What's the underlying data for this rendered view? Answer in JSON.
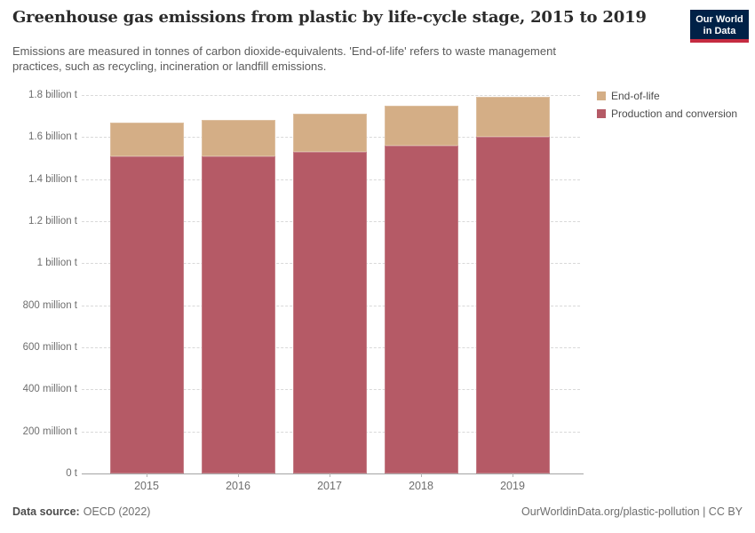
{
  "header": {
    "title": "Greenhouse gas emissions from plastic by life-cycle stage, 2015 to 2019",
    "subtitle_line1": "Emissions are measured in tonnes of carbon dioxide-equivalents. 'End-of-life' refers to waste management",
    "subtitle_line2": "practices, such as recycling, incineration or landfill emissions.",
    "logo": {
      "line1": "Our World",
      "line2": "in Data",
      "bg_color": "#002147",
      "stripe_color": "#C52B41"
    }
  },
  "legend": [
    {
      "label": "End-of-life",
      "color": "#D4AE86"
    },
    {
      "label": "Production and conversion",
      "color": "#B55A66"
    }
  ],
  "chart_data": {
    "type": "bar",
    "stacked": true,
    "title": "Greenhouse gas emissions from plastic by life-cycle stage, 2015 to 2019",
    "subtitle": "Emissions are measured in tonnes of carbon dioxide-equivalents. 'End-of-life' refers to waste management practices, such as recycling, incineration or landfill emissions.",
    "unit": "tonnes of carbon dioxide-equivalents",
    "categories": [
      "2015",
      "2016",
      "2017",
      "2018",
      "2019"
    ],
    "series": [
      {
        "name": "Production and conversion",
        "key": "production-and-conversion",
        "color": "#B55A66",
        "values_billion_t": [
          1.51,
          1.51,
          1.53,
          1.56,
          1.6
        ]
      },
      {
        "name": "End-of-life",
        "key": "end-of-life",
        "color": "#D4AE86",
        "values_billion_t": [
          0.16,
          0.17,
          0.18,
          0.19,
          0.19
        ]
      }
    ],
    "totals_billion_t": [
      1.67,
      1.68,
      1.71,
      1.75,
      1.79
    ],
    "ylim": [
      0,
      1.8
    ],
    "yticks": [
      {
        "value": 1.8,
        "label": "1.8 billion t"
      },
      {
        "value": 1.6,
        "label": "1.6 billion t"
      },
      {
        "value": 1.4,
        "label": "1.4 billion t"
      },
      {
        "value": 1.2,
        "label": "1.2 billion t"
      },
      {
        "value": 1.0,
        "label": "1 billion t"
      },
      {
        "value": 0.8,
        "label": "800 million t"
      },
      {
        "value": 0.6,
        "label": "600 million t"
      },
      {
        "value": 0.4,
        "label": "400 million t"
      },
      {
        "value": 0.2,
        "label": "200 million t"
      },
      {
        "value": 0,
        "label": "0 t"
      }
    ],
    "grid": "horizontal-dashed",
    "legend_position": "top-right"
  },
  "footer": {
    "source_label": "Data source:",
    "source_value": "OECD (2022)",
    "credit": "OurWorldinData.org/plastic-pollution | CC BY"
  }
}
